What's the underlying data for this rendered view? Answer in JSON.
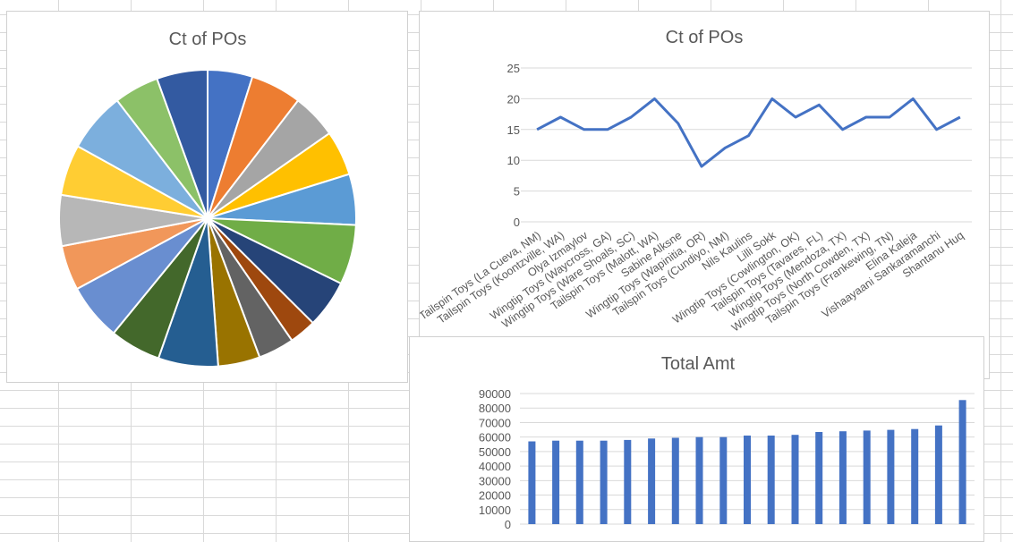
{
  "charts": {
    "pie": {
      "type": "pie",
      "title": "Ct of POs",
      "values": [
        15,
        17,
        15,
        15,
        17,
        20,
        16,
        9,
        12,
        14,
        20,
        17,
        19,
        15,
        17,
        17,
        20,
        15,
        17
      ],
      "colors": [
        "#4472C4",
        "#ED7D31",
        "#A5A5A5",
        "#FFC000",
        "#5B9BD5",
        "#70AD47",
        "#264478",
        "#9E480E",
        "#636363",
        "#997300",
        "#255E91",
        "#43682B",
        "#698ED0",
        "#F1975A",
        "#B7B7B7",
        "#FFCD33",
        "#7CAFDD",
        "#8CC168",
        "#335AA1"
      ]
    },
    "line": {
      "type": "line",
      "title": "Ct of POs",
      "categories": [
        "Tailspin Toys (La Cueva, NM)",
        "Tailspin Toys (Koontzville, WA)",
        "Olya Izmaylov",
        "Wingtip Toys (Waycross, GA)",
        "Wingtip Toys (Ware Shoals, SC)",
        "Tailspin Toys (Malott, WA)",
        "Sabine Alksne",
        "Wingtip Toys (Wapinitia, OR)",
        "Tailspin Toys (Cundiyo, NM)",
        "Nils Kaulins",
        "Lilli Sokk",
        "Wingtip Toys (Cowlington, OK)",
        "Tailspin Toys (Tavares, FL)",
        "Wingtip Toys (Mendoza, TX)",
        "Wingtip Toys (North Cowden, TX)",
        "Tailspin Toys (Frankewing, TN)",
        "Elina Kaleja",
        "Vishaayaani Sankaramanchi",
        "Shantanu Huq"
      ],
      "values": [
        15,
        17,
        15,
        15,
        17,
        20,
        16,
        9,
        12,
        14,
        20,
        17,
        19,
        15,
        17,
        17,
        20,
        15,
        17
      ],
      "yticks": [
        "0",
        "5",
        "10",
        "15",
        "20",
        "25"
      ],
      "ylim": [
        0,
        25
      ],
      "color": "#4472C4",
      "grid": true
    },
    "bar": {
      "type": "bar",
      "title": "Total Amt",
      "values": [
        57000,
        57500,
        57500,
        57500,
        58000,
        59000,
        59500,
        60000,
        60000,
        61000,
        61000,
        61500,
        63500,
        64000,
        64500,
        65000,
        65500,
        68000,
        85500
      ],
      "yticks": [
        "0",
        "10000",
        "20000",
        "30000",
        "40000",
        "50000",
        "60000",
        "70000",
        "80000",
        "90000"
      ],
      "ylim": [
        0,
        90000
      ],
      "color": "#4472C4",
      "grid": true
    }
  }
}
